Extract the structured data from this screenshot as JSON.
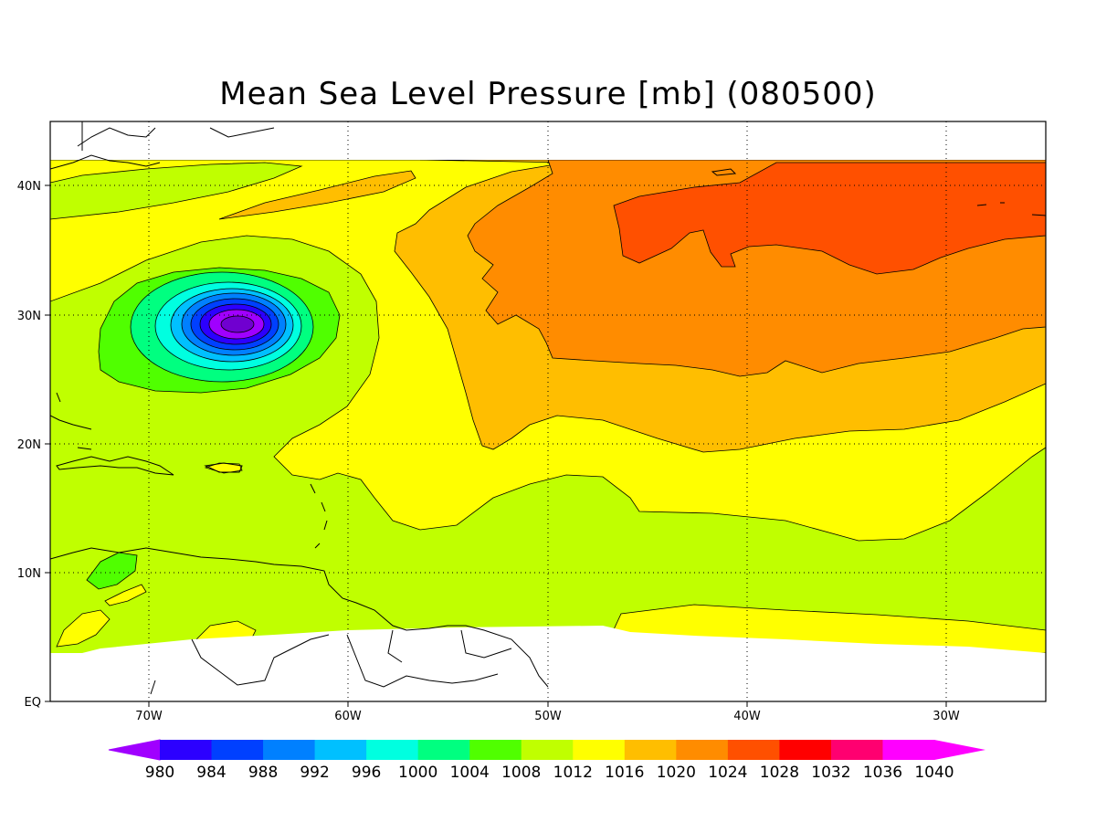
{
  "title": "Mean Sea Level Pressure [mb] (080500)",
  "map": {
    "longitude_labels": [
      "70W",
      "60W",
      "50W",
      "40W",
      "30W"
    ],
    "latitude_labels": [
      "40N",
      "30N",
      "20N",
      "10N",
      "EQ"
    ],
    "lon_range": [
      -75,
      -25
    ],
    "lat_range": [
      0,
      45
    ],
    "data_lat_range": [
      5,
      42
    ],
    "low_center": {
      "lon": -65.5,
      "lat": 29.3,
      "min_level": 980
    }
  },
  "colorbar": {
    "levels": [
      "980",
      "984",
      "988",
      "992",
      "996",
      "1000",
      "1004",
      "1008",
      "1012",
      "1016",
      "1020",
      "1024",
      "1028",
      "1032",
      "1036",
      "1040"
    ],
    "colors": [
      "#a000ff",
      "#2c00ff",
      "#0040ff",
      "#0080ff",
      "#00c0ff",
      "#00ffe0",
      "#00ff80",
      "#50ff00",
      "#c0ff00",
      "#ffff00",
      "#ffbe00",
      "#ff8c00",
      "#ff5000",
      "#ff0000",
      "#ff0070",
      "#ff00ff"
    ]
  }
}
